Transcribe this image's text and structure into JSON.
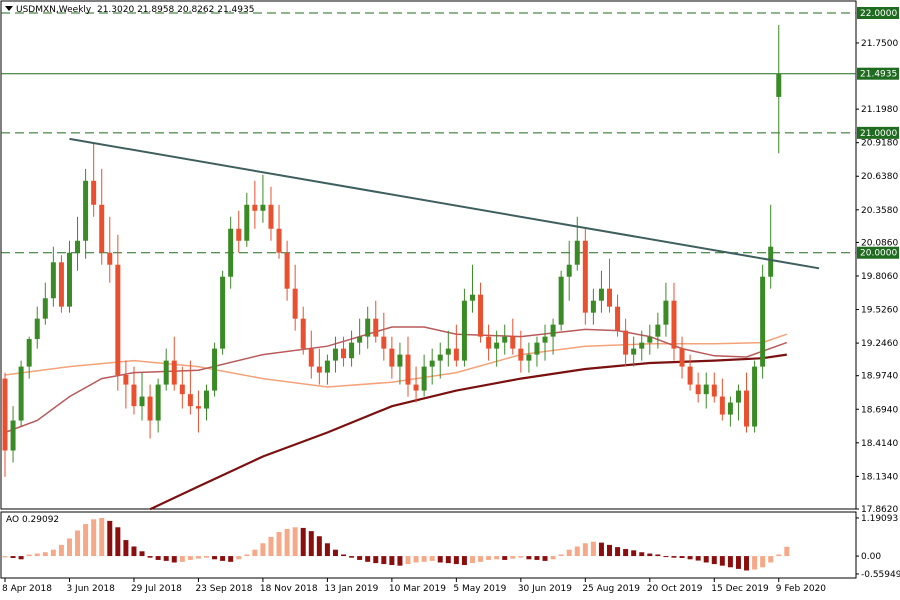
{
  "header": {
    "symbol": "USDMXN,Weekly",
    "ohlc": "21.3020 21.8958 20.8262 21.4935"
  },
  "ao_header": {
    "label": "AO 0.29092"
  },
  "colors": {
    "bull": "#3a8a26",
    "bear": "#e8502f",
    "hline": "#1f6b1f",
    "trend": "#3f5f5f",
    "ma_fast": "#f3a27a",
    "ma_mid": "#b85a5a",
    "ma_slow": "#7b1010",
    "ao_up": "#f6a988",
    "ao_down": "#8b0e0e"
  },
  "chart_data": {
    "type": "candlestick",
    "ylim": [
      17.862,
      22.1
    ],
    "y_ticks": [
      "22.0000",
      "21.7500",
      "21.4935",
      "21.1980",
      "21.0000",
      "20.9180",
      "20.6380",
      "20.3580",
      "20.0860",
      "20.0000",
      "19.8060",
      "19.5260",
      "19.2460",
      "18.9740",
      "18.6940",
      "18.4140",
      "18.1340",
      "17.8620"
    ],
    "y_tick_values": [
      22.0,
      21.75,
      21.4935,
      21.198,
      21.0,
      20.918,
      20.638,
      20.358,
      20.086,
      20.0,
      19.806,
      19.526,
      19.246,
      18.974,
      18.694,
      18.414,
      18.134,
      17.862
    ],
    "highlight_levels": [
      {
        "value": 22.0,
        "label": "22.0000",
        "style": "dashed"
      },
      {
        "value": 21.4935,
        "label": "21.4935",
        "style": "solid"
      },
      {
        "value": 21.0,
        "label": "21.0000",
        "style": "dashed"
      },
      {
        "value": 20.0,
        "label": "20.0000",
        "style": "dashed"
      }
    ],
    "x_labels": [
      "8 Apr 2018",
      "3 Jun 2018",
      "29 Jul 2018",
      "23 Sep 2018",
      "18 Nov 2018",
      "13 Jan 2019",
      "10 Mar 2019",
      "5 May 2019",
      "30 Jun 2019",
      "25 Aug 2019",
      "20 Oct 2019",
      "15 Dec 2019",
      "9 Feb 2020"
    ],
    "x_label_index": [
      0,
      8,
      16,
      24,
      32,
      40,
      48,
      56,
      64,
      72,
      80,
      88,
      96
    ],
    "candles": [
      {
        "o": 18.95,
        "h": 19.0,
        "l": 18.13,
        "c": 18.35
      },
      {
        "o": 18.35,
        "h": 18.72,
        "l": 18.25,
        "c": 18.6
      },
      {
        "o": 18.6,
        "h": 19.1,
        "l": 18.55,
        "c": 19.05
      },
      {
        "o": 19.05,
        "h": 19.3,
        "l": 18.95,
        "c": 19.28
      },
      {
        "o": 19.28,
        "h": 19.55,
        "l": 19.2,
        "c": 19.45
      },
      {
        "o": 19.45,
        "h": 19.75,
        "l": 19.4,
        "c": 19.62
      },
      {
        "o": 19.62,
        "h": 20.05,
        "l": 19.55,
        "c": 19.92
      },
      {
        "o": 19.92,
        "h": 19.98,
        "l": 19.5,
        "c": 19.55
      },
      {
        "o": 19.55,
        "h": 20.1,
        "l": 19.5,
        "c": 20.0
      },
      {
        "o": 20.0,
        "h": 20.3,
        "l": 19.85,
        "c": 20.1
      },
      {
        "o": 20.1,
        "h": 20.7,
        "l": 19.95,
        "c": 20.6
      },
      {
        "o": 20.6,
        "h": 20.92,
        "l": 20.3,
        "c": 20.4
      },
      {
        "o": 20.4,
        "h": 20.7,
        "l": 19.9,
        "c": 20.0
      },
      {
        "o": 20.0,
        "h": 20.3,
        "l": 19.75,
        "c": 19.9
      },
      {
        "o": 19.9,
        "h": 20.15,
        "l": 18.85,
        "c": 18.98
      },
      {
        "o": 18.98,
        "h": 19.1,
        "l": 18.7,
        "c": 18.9
      },
      {
        "o": 18.9,
        "h": 19.05,
        "l": 18.65,
        "c": 18.72
      },
      {
        "o": 18.72,
        "h": 19.0,
        "l": 18.6,
        "c": 18.8
      },
      {
        "o": 18.8,
        "h": 18.9,
        "l": 18.45,
        "c": 18.6
      },
      {
        "o": 18.6,
        "h": 18.95,
        "l": 18.5,
        "c": 18.9
      },
      {
        "o": 18.9,
        "h": 19.2,
        "l": 18.85,
        "c": 19.1
      },
      {
        "o": 19.1,
        "h": 19.3,
        "l": 18.85,
        "c": 18.9
      },
      {
        "o": 18.9,
        "h": 19.05,
        "l": 18.7,
        "c": 18.82
      },
      {
        "o": 18.82,
        "h": 19.1,
        "l": 18.65,
        "c": 18.72
      },
      {
        "o": 18.72,
        "h": 18.85,
        "l": 18.5,
        "c": 18.7
      },
      {
        "o": 18.7,
        "h": 18.9,
        "l": 18.6,
        "c": 18.85
      },
      {
        "o": 18.85,
        "h": 19.25,
        "l": 18.8,
        "c": 19.2
      },
      {
        "o": 19.2,
        "h": 19.85,
        "l": 19.15,
        "c": 19.8
      },
      {
        "o": 19.8,
        "h": 20.3,
        "l": 19.7,
        "c": 20.2
      },
      {
        "o": 20.2,
        "h": 20.35,
        "l": 20.0,
        "c": 20.1
      },
      {
        "o": 20.1,
        "h": 20.5,
        "l": 20.05,
        "c": 20.4
      },
      {
        "o": 20.4,
        "h": 20.6,
        "l": 20.2,
        "c": 20.35
      },
      {
        "o": 20.35,
        "h": 20.65,
        "l": 20.25,
        "c": 20.4
      },
      {
        "o": 20.4,
        "h": 20.55,
        "l": 20.1,
        "c": 20.2
      },
      {
        "o": 20.2,
        "h": 20.4,
        "l": 19.95,
        "c": 20.0
      },
      {
        "o": 20.0,
        "h": 20.1,
        "l": 19.6,
        "c": 19.7
      },
      {
        "o": 19.7,
        "h": 19.9,
        "l": 19.35,
        "c": 19.45
      },
      {
        "o": 19.45,
        "h": 19.55,
        "l": 19.15,
        "c": 19.2
      },
      {
        "o": 19.2,
        "h": 19.35,
        "l": 18.95,
        "c": 19.05
      },
      {
        "o": 19.05,
        "h": 19.2,
        "l": 18.9,
        "c": 19.0
      },
      {
        "o": 19.0,
        "h": 19.15,
        "l": 18.9,
        "c": 19.1
      },
      {
        "o": 19.1,
        "h": 19.3,
        "l": 19.0,
        "c": 19.2
      },
      {
        "o": 19.2,
        "h": 19.3,
        "l": 19.05,
        "c": 19.12
      },
      {
        "o": 19.12,
        "h": 19.35,
        "l": 19.05,
        "c": 19.25
      },
      {
        "o": 19.25,
        "h": 19.45,
        "l": 19.15,
        "c": 19.3
      },
      {
        "o": 19.3,
        "h": 19.55,
        "l": 19.2,
        "c": 19.45
      },
      {
        "o": 19.45,
        "h": 19.6,
        "l": 19.25,
        "c": 19.3
      },
      {
        "o": 19.3,
        "h": 19.5,
        "l": 19.1,
        "c": 19.2
      },
      {
        "o": 19.2,
        "h": 19.3,
        "l": 18.95,
        "c": 19.05
      },
      {
        "o": 19.05,
        "h": 19.25,
        "l": 18.9,
        "c": 19.15
      },
      {
        "o": 19.15,
        "h": 19.3,
        "l": 18.8,
        "c": 18.9
      },
      {
        "o": 18.9,
        "h": 19.05,
        "l": 18.75,
        "c": 18.85
      },
      {
        "o": 18.85,
        "h": 19.15,
        "l": 18.8,
        "c": 19.05
      },
      {
        "o": 19.05,
        "h": 19.2,
        "l": 18.9,
        "c": 19.1
      },
      {
        "o": 19.1,
        "h": 19.25,
        "l": 18.95,
        "c": 19.15
      },
      {
        "o": 19.15,
        "h": 19.35,
        "l": 19.05,
        "c": 19.2
      },
      {
        "o": 19.2,
        "h": 19.4,
        "l": 19.05,
        "c": 19.1
      },
      {
        "o": 19.1,
        "h": 19.7,
        "l": 19.05,
        "c": 19.6
      },
      {
        "o": 19.6,
        "h": 19.9,
        "l": 19.5,
        "c": 19.65
      },
      {
        "o": 19.65,
        "h": 19.75,
        "l": 19.25,
        "c": 19.3
      },
      {
        "o": 19.3,
        "h": 19.4,
        "l": 19.1,
        "c": 19.2
      },
      {
        "o": 19.2,
        "h": 19.35,
        "l": 19.05,
        "c": 19.25
      },
      {
        "o": 19.25,
        "h": 19.4,
        "l": 19.15,
        "c": 19.3
      },
      {
        "o": 19.3,
        "h": 19.45,
        "l": 19.15,
        "c": 19.2
      },
      {
        "o": 19.2,
        "h": 19.35,
        "l": 19.0,
        "c": 19.1
      },
      {
        "o": 19.1,
        "h": 19.25,
        "l": 19.0,
        "c": 19.15
      },
      {
        "o": 19.15,
        "h": 19.3,
        "l": 19.05,
        "c": 19.25
      },
      {
        "o": 19.25,
        "h": 19.4,
        "l": 19.1,
        "c": 19.3
      },
      {
        "o": 19.3,
        "h": 19.45,
        "l": 19.15,
        "c": 19.4
      },
      {
        "o": 19.4,
        "h": 19.85,
        "l": 19.35,
        "c": 19.8
      },
      {
        "o": 19.8,
        "h": 20.1,
        "l": 19.6,
        "c": 19.9
      },
      {
        "o": 19.9,
        "h": 20.3,
        "l": 19.85,
        "c": 20.1
      },
      {
        "o": 20.1,
        "h": 20.2,
        "l": 19.4,
        "c": 19.5
      },
      {
        "o": 19.5,
        "h": 19.7,
        "l": 19.4,
        "c": 19.6
      },
      {
        "o": 19.6,
        "h": 19.85,
        "l": 19.5,
        "c": 19.7
      },
      {
        "o": 19.7,
        "h": 19.95,
        "l": 19.5,
        "c": 19.55
      },
      {
        "o": 19.55,
        "h": 19.65,
        "l": 19.3,
        "c": 19.35
      },
      {
        "o": 19.35,
        "h": 19.45,
        "l": 19.05,
        "c": 19.15
      },
      {
        "o": 19.15,
        "h": 19.3,
        "l": 19.05,
        "c": 19.2
      },
      {
        "o": 19.2,
        "h": 19.35,
        "l": 19.1,
        "c": 19.25
      },
      {
        "o": 19.25,
        "h": 19.4,
        "l": 19.15,
        "c": 19.3
      },
      {
        "o": 19.3,
        "h": 19.5,
        "l": 19.2,
        "c": 19.4
      },
      {
        "o": 19.4,
        "h": 19.75,
        "l": 19.3,
        "c": 19.6
      },
      {
        "o": 19.6,
        "h": 19.75,
        "l": 19.1,
        "c": 19.2
      },
      {
        "o": 19.2,
        "h": 19.3,
        "l": 18.95,
        "c": 19.05
      },
      {
        "o": 19.05,
        "h": 19.15,
        "l": 18.85,
        "c": 18.9
      },
      {
        "o": 18.9,
        "h": 19.0,
        "l": 18.75,
        "c": 18.82
      },
      {
        "o": 18.82,
        "h": 19.0,
        "l": 18.7,
        "c": 18.9
      },
      {
        "o": 18.9,
        "h": 19.0,
        "l": 18.75,
        "c": 18.8
      },
      {
        "o": 18.8,
        "h": 18.95,
        "l": 18.6,
        "c": 18.65
      },
      {
        "o": 18.65,
        "h": 18.8,
        "l": 18.55,
        "c": 18.75
      },
      {
        "o": 18.75,
        "h": 18.9,
        "l": 18.6,
        "c": 18.85
      },
      {
        "o": 18.85,
        "h": 19.0,
        "l": 18.5,
        "c": 18.55
      },
      {
        "o": 18.55,
        "h": 19.1,
        "l": 18.5,
        "c": 19.05
      },
      {
        "o": 19.05,
        "h": 19.9,
        "l": 18.95,
        "c": 19.8
      },
      {
        "o": 19.8,
        "h": 20.4,
        "l": 19.7,
        "c": 20.05
      },
      {
        "o": 21.3,
        "h": 21.9,
        "l": 20.83,
        "c": 21.49
      }
    ],
    "ma_fast": [
      [
        0,
        18.98
      ],
      [
        8,
        19.05
      ],
      [
        16,
        19.1
      ],
      [
        24,
        19.05
      ],
      [
        32,
        18.95
      ],
      [
        40,
        18.88
      ],
      [
        48,
        18.92
      ],
      [
        56,
        19.0
      ],
      [
        64,
        19.15
      ],
      [
        72,
        19.22
      ],
      [
        80,
        19.24
      ],
      [
        88,
        19.24
      ],
      [
        94,
        19.25
      ],
      [
        97,
        19.32
      ]
    ],
    "ma_mid": [
      [
        0,
        18.5
      ],
      [
        4,
        18.6
      ],
      [
        8,
        18.8
      ],
      [
        12,
        18.95
      ],
      [
        16,
        19.0
      ],
      [
        24,
        19.02
      ],
      [
        32,
        19.15
      ],
      [
        40,
        19.22
      ],
      [
        48,
        19.38
      ],
      [
        52,
        19.38
      ],
      [
        56,
        19.32
      ],
      [
        64,
        19.3
      ],
      [
        72,
        19.36
      ],
      [
        76,
        19.35
      ],
      [
        80,
        19.3
      ],
      [
        84,
        19.2
      ],
      [
        88,
        19.14
      ],
      [
        92,
        19.13
      ],
      [
        97,
        19.25
      ]
    ],
    "ma_slow": [
      [
        18,
        17.86
      ],
      [
        24,
        18.05
      ],
      [
        32,
        18.3
      ],
      [
        40,
        18.5
      ],
      [
        48,
        18.72
      ],
      [
        56,
        18.85
      ],
      [
        64,
        18.95
      ],
      [
        72,
        19.03
      ],
      [
        80,
        19.08
      ],
      [
        88,
        19.1
      ],
      [
        94,
        19.12
      ],
      [
        97,
        19.15
      ]
    ],
    "trendline": [
      [
        8,
        20.95
      ],
      [
        101,
        19.87
      ]
    ],
    "ao_ylim": [
      -0.56,
      1.19
    ],
    "ao_ticks": [
      "1.19093",
      "0.00",
      "-0.55949"
    ],
    "ao_tick_values": [
      1.19093,
      0.0,
      -0.55949
    ],
    "ao": [
      -0.04,
      -0.06,
      -0.1,
      0.05,
      0.08,
      0.12,
      0.2,
      0.35,
      0.55,
      0.8,
      1.0,
      1.15,
      1.19,
      1.1,
      0.9,
      0.5,
      0.3,
      0.15,
      -0.05,
      -0.12,
      -0.15,
      -0.2,
      -0.18,
      -0.12,
      -0.08,
      -0.05,
      -0.1,
      -0.15,
      -0.18,
      -0.1,
      0.05,
      0.2,
      0.4,
      0.6,
      0.75,
      0.85,
      0.9,
      0.88,
      0.78,
      0.62,
      0.4,
      0.2,
      0.05,
      -0.05,
      -0.12,
      -0.18,
      -0.22,
      -0.25,
      -0.28,
      -0.3,
      -0.25,
      -0.2,
      -0.18,
      -0.15,
      -0.2,
      -0.22,
      -0.25,
      -0.28,
      -0.22,
      -0.18,
      -0.12,
      -0.1,
      -0.12,
      -0.08,
      -0.05,
      -0.1,
      -0.12,
      -0.15,
      -0.1,
      0.05,
      0.2,
      0.3,
      0.4,
      0.45,
      0.42,
      0.35,
      0.28,
      0.22,
      0.18,
      0.12,
      0.08,
      0.05,
      -0.02,
      -0.05,
      -0.06,
      -0.1,
      -0.14,
      -0.2,
      -0.25,
      -0.3,
      -0.35,
      -0.4,
      -0.45,
      -0.42,
      -0.35,
      -0.2,
      0.05,
      0.29
    ]
  }
}
